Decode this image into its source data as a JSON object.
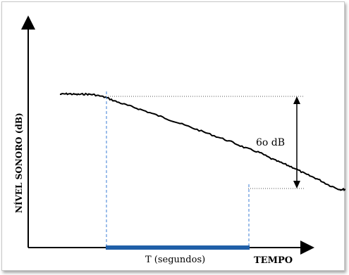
{
  "chart_data": {
    "type": "line",
    "title": "",
    "xlabel": "TEMPO",
    "ylabel": "NÍVEL SONORO (dB)",
    "grid": false,
    "annotations": {
      "level_drop": "60 dB",
      "level_drop_display": "6o dB",
      "time_span": "T (segundos)"
    },
    "series": [
      {
        "x": [
          0,
          0.03,
          0.06,
          0.09,
          0.12,
          0.16,
          0.2,
          0.25,
          0.3,
          0.36,
          0.42,
          0.48,
          0.54,
          0.6,
          0.65,
          0.7,
          0.74,
          0.78,
          0.82,
          0.86,
          0.9,
          0.94,
          0.98,
          1.0
        ],
        "y": [
          0,
          0.3,
          -0.2,
          0.1,
          -0.3,
          -2,
          -5,
          -8,
          -11,
          -15,
          -19,
          -23,
          -27,
          -31,
          -35,
          -38,
          -42,
          -45,
          -48,
          -52,
          -55,
          -59,
          -62,
          -62
        ]
      }
    ],
    "notes": []
  },
  "colors": {
    "curve": "#000000",
    "bar": "#1f5fa8",
    "dashed": "#3a7bd5",
    "dotted": "#555555"
  }
}
